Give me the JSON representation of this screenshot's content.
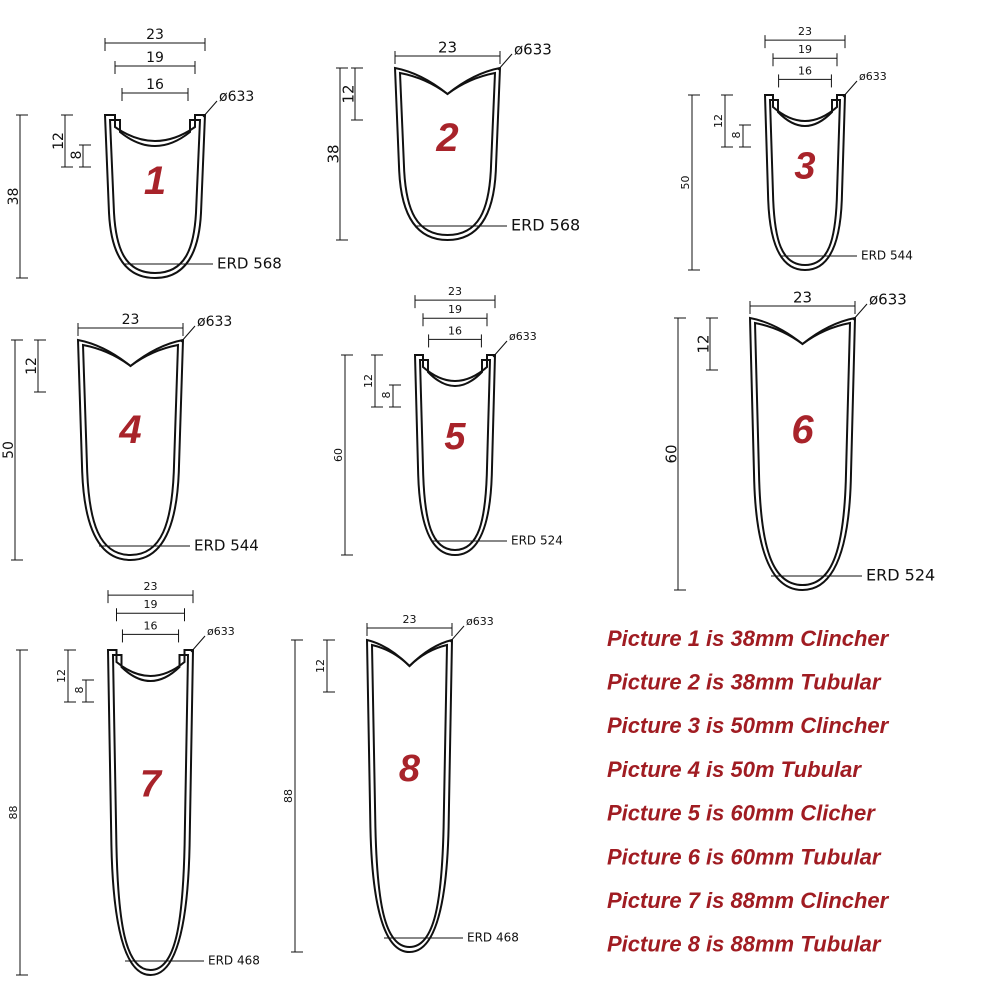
{
  "profiles": [
    {
      "number": "1",
      "width": "23",
      "inner_width": "19",
      "bed_width": "16",
      "diameter": "ø633",
      "hook_depth": "12",
      "bed_depth": "8",
      "depth": "38",
      "erd": "ERD 568"
    },
    {
      "number": "2",
      "width": "23",
      "diameter": "ø633",
      "hook_depth": "12",
      "depth": "38",
      "erd": "ERD 568"
    },
    {
      "number": "3",
      "width": "23",
      "inner_width": "19",
      "bed_width": "16",
      "diameter": "ø633",
      "hook_depth": "12",
      "bed_depth": "8",
      "depth": "50",
      "erd": "ERD 544"
    },
    {
      "number": "4",
      "width": "23",
      "diameter": "ø633",
      "hook_depth": "12",
      "depth": "50",
      "erd": "ERD 544"
    },
    {
      "number": "5",
      "width": "23",
      "inner_width": "19",
      "bed_width": "16",
      "diameter": "ø633",
      "hook_depth": "12",
      "bed_depth": "8",
      "depth": "60",
      "erd": "ERD 524"
    },
    {
      "number": "6",
      "width": "23",
      "diameter": "ø633",
      "hook_depth": "12",
      "depth": "60",
      "erd": "ERD 524"
    },
    {
      "number": "7",
      "width": "23",
      "inner_width": "19",
      "bed_width": "16",
      "diameter": "ø633",
      "hook_depth": "12",
      "bed_depth": "8",
      "depth": "88",
      "erd": "ERD 468"
    },
    {
      "number": "8",
      "width": "23",
      "diameter": "ø633",
      "hook_depth": "12",
      "depth": "88",
      "erd": "ERD 468"
    }
  ],
  "captions": [
    "Picture 1 is 38mm Clincher",
    "Picture 2 is 38mm Tubular",
    "Picture 3 is 50mm Clincher",
    "Picture 4 is 50m Tubular",
    "Picture 5 is 60mm Clicher",
    "Picture 6 is 60mm Tubular",
    "Picture 7 is 88mm Clincher",
    "Picture 8 is 88mm Tubular"
  ]
}
